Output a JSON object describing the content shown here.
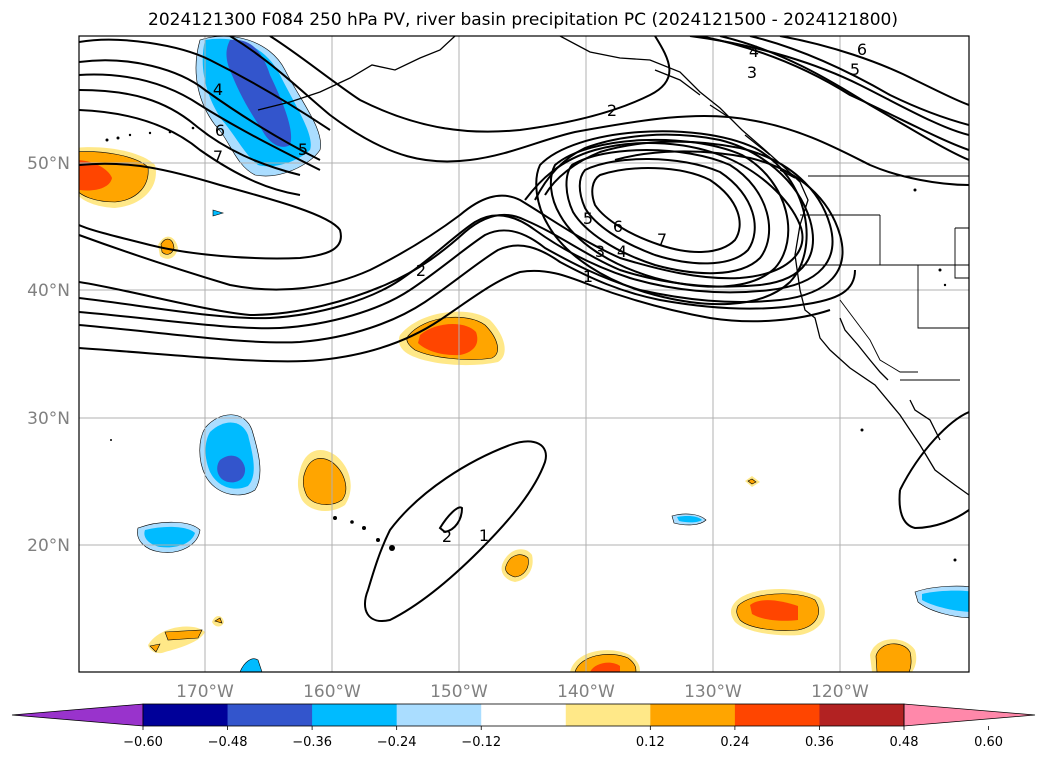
{
  "title": "2024121300 F084 250 hPa PV, river basin precipitation PC (2024121500 - 2024121800)",
  "lat_labels": [
    "50°N",
    "40°N",
    "30°N",
    "20°N"
  ],
  "lon_labels": [
    "170°W",
    "160°W",
    "150°W",
    "140°W",
    "130°W",
    "120°W"
  ],
  "colorbar": {
    "colors": [
      "#9933cc",
      "#000099",
      "#3355cc",
      "#00bbff",
      "#aaddff",
      "#ffffff",
      "#ffe888",
      "#ffa500",
      "#ff4500",
      "#b22222",
      "#ff88aa"
    ],
    "tick_labels": [
      "−0.60",
      "−0.48",
      "−0.36",
      "−0.24",
      "−0.12",
      "0.12",
      "0.24",
      "0.36",
      "0.48",
      "0.60"
    ]
  },
  "contour_labels": {
    "north": [
      "2",
      "4",
      "3",
      "6",
      "5"
    ],
    "west": [
      "4",
      "6",
      "7",
      "5"
    ],
    "ridge": [
      "5",
      "6",
      "7",
      "3",
      "4",
      "1",
      "2"
    ],
    "south": [
      "2",
      "1"
    ]
  }
}
